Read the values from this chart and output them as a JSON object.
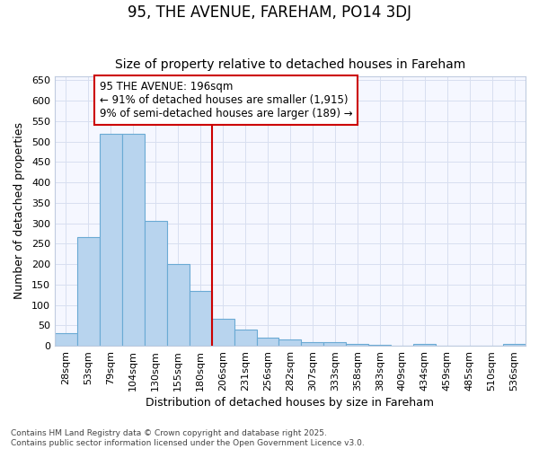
{
  "title": "95, THE AVENUE, FAREHAM, PO14 3DJ",
  "subtitle": "Size of property relative to detached houses in Fareham",
  "xlabel": "Distribution of detached houses by size in Fareham",
  "ylabel": "Number of detached properties",
  "categories": [
    "28sqm",
    "53sqm",
    "79sqm",
    "104sqm",
    "130sqm",
    "155sqm",
    "180sqm",
    "206sqm",
    "231sqm",
    "256sqm",
    "282sqm",
    "307sqm",
    "333sqm",
    "358sqm",
    "383sqm",
    "409sqm",
    "434sqm",
    "459sqm",
    "485sqm",
    "510sqm",
    "536sqm"
  ],
  "values": [
    30,
    267,
    518,
    520,
    305,
    200,
    135,
    67,
    40,
    21,
    15,
    10,
    8,
    5,
    3,
    0,
    4,
    0,
    0,
    0,
    5
  ],
  "bar_color": "#b8d4ee",
  "bar_edge_color": "#6aaad4",
  "marker_index": 7,
  "marker_label": "95 THE AVENUE: 196sqm",
  "annotation_line1": "← 91% of detached houses are smaller (1,915)",
  "annotation_line2": "9% of semi-detached houses are larger (189) →",
  "marker_color": "#cc0000",
  "grid_color": "#d8dff0",
  "background_color": "#ffffff",
  "plot_bg_color": "#f5f7ff",
  "ylim": [
    0,
    660
  ],
  "yticks": [
    0,
    50,
    100,
    150,
    200,
    250,
    300,
    350,
    400,
    450,
    500,
    550,
    600,
    650
  ],
  "footer_line1": "Contains HM Land Registry data © Crown copyright and database right 2025.",
  "footer_line2": "Contains public sector information licensed under the Open Government Licence v3.0.",
  "title_fontsize": 12,
  "subtitle_fontsize": 10,
  "axis_label_fontsize": 9,
  "tick_fontsize": 8,
  "annotation_fontsize": 8.5
}
